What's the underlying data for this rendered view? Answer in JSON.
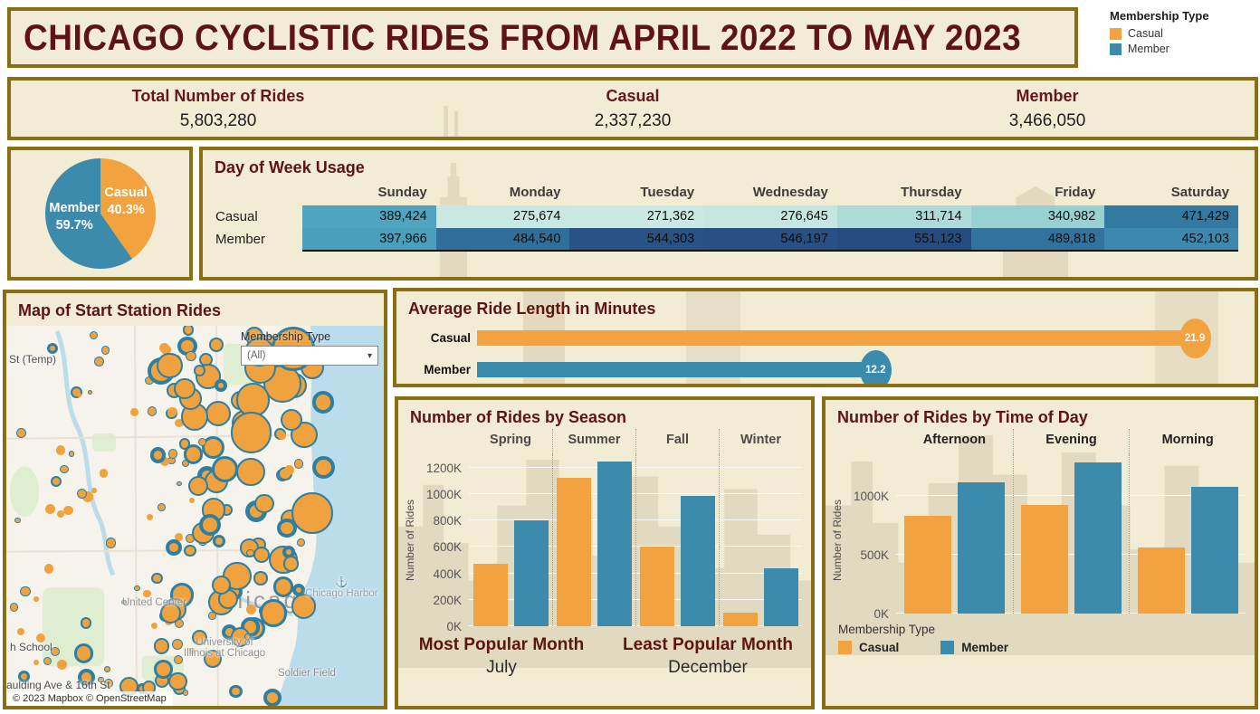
{
  "palette": {
    "casual": "#F2A340",
    "member": "#3C8BAD",
    "maroon": "#5E1414",
    "panel_border": "#8A6E14",
    "panel_bg": "#F3ECD5",
    "skyline": "#D8CFB5"
  },
  "title": "CHICAGO CYCLISTIC RIDES FROM APRIL 2022 TO MAY 2023",
  "legend": {
    "title": "Membership Type",
    "items": [
      {
        "label": "Casual",
        "color": "#F2A340"
      },
      {
        "label": "Member",
        "color": "#3C8BAD"
      }
    ]
  },
  "stats": {
    "items": [
      {
        "label": "Total Number of Rides",
        "value": "5,803,280"
      },
      {
        "label": "Casual",
        "value": "2,337,230"
      },
      {
        "label": "Member",
        "value": "3,466,050"
      }
    ]
  },
  "pie": {
    "slices": [
      {
        "label": "Casual",
        "pct": "40.3%",
        "value": 40.3,
        "color": "#F2A340"
      },
      {
        "label": "Member",
        "pct": "59.7%",
        "value": 59.7,
        "color": "#3C8BAD"
      }
    ]
  },
  "day_of_week": {
    "title": "Day of Week Usage",
    "columns": [
      "Sunday",
      "Monday",
      "Tuesday",
      "Wednesday",
      "Thursday",
      "Friday",
      "Saturday"
    ],
    "rows": [
      {
        "label": "Casual",
        "values": [
          "389,424",
          "275,674",
          "271,362",
          "276,645",
          "311,714",
          "340,982",
          "471,429"
        ],
        "colors": [
          "#4FA4C0",
          "#C9E8E3",
          "#CBE9E4",
          "#C6E6E1",
          "#ACDBD8",
          "#97D1D2",
          "#3379A2"
        ]
      },
      {
        "label": "Member",
        "values": [
          "397,966",
          "484,540",
          "544,303",
          "546,197",
          "551,123",
          "489,818",
          "452,103"
        ],
        "colors": [
          "#4A9FBD",
          "#2F6F9A",
          "#295285",
          "#285083",
          "#264C7F",
          "#31739D",
          "#3D89AE"
        ]
      }
    ]
  },
  "map": {
    "title": "Map of Start Station Rides",
    "filter": {
      "label": "Membership Type",
      "value": "(All)"
    },
    "labels": {
      "city": "Chicago",
      "st_temp": "St (Temp)",
      "united_center": "United Center",
      "chicago_harbor": "Chicago Harbor",
      "university_line1": "University of",
      "university_line2": "Illinois at Chicago",
      "school": "h School",
      "spaulding": "aulding Ave & 16th St",
      "soldier_field": "Soldier Field"
    },
    "attribution": "© 2023 Mapbox  © OpenStreetMap",
    "anchor_icon": "⚓",
    "dropdown_arrow": "▾"
  },
  "avg_ride": {
    "title": "Average Ride Length in Minutes",
    "max_scale": 22.9,
    "bars": [
      {
        "label": "Casual",
        "value": 21.9,
        "display": "21.9",
        "color": "#F2A340"
      },
      {
        "label": "Member",
        "value": 12.2,
        "display": "12.2",
        "color": "#3C8BAD"
      }
    ]
  },
  "season": {
    "title": "Number of Rides by Season",
    "ylabel": "Number of Rides",
    "annotations": [
      {
        "label": "Most Popular Month",
        "value": "July"
      },
      {
        "label": "Least Popular Month",
        "value": "December"
      }
    ]
  },
  "time_of_day": {
    "title": "Number of Rides by Time of Day",
    "ylabel": "Number of Rides",
    "legend_title": "Membership Type"
  },
  "chart_data": [
    {
      "type": "pie",
      "title": "Membership share of total rides",
      "labels": [
        "Casual",
        "Member"
      ],
      "values": [
        40.3,
        59.7
      ],
      "unit": "percent"
    },
    {
      "type": "heatmap",
      "title": "Day of Week Usage",
      "categories": [
        "Sunday",
        "Monday",
        "Tuesday",
        "Wednesday",
        "Thursday",
        "Friday",
        "Saturday"
      ],
      "series": [
        {
          "name": "Casual",
          "values": [
            389424,
            275674,
            271362,
            276645,
            311714,
            340982,
            471429
          ]
        },
        {
          "name": "Member",
          "values": [
            397966,
            484540,
            544303,
            546197,
            551123,
            489818,
            452103
          ]
        }
      ]
    },
    {
      "type": "bar",
      "title": "Average Ride Length in Minutes",
      "categories": [
        "Casual",
        "Member"
      ],
      "values": [
        21.9,
        12.2
      ],
      "unit": "minutes"
    },
    {
      "type": "bar",
      "title": "Number of Rides by Season",
      "categories": [
        "Spring",
        "Summer",
        "Fall",
        "Winter"
      ],
      "series": [
        {
          "name": "Casual",
          "values": [
            470000,
            1125000,
            605000,
            105000
          ]
        },
        {
          "name": "Member",
          "values": [
            800000,
            1245000,
            985000,
            435000
          ]
        }
      ],
      "ylabel": "Number of Rides",
      "yticks": [
        "0K",
        "200K",
        "400K",
        "600K",
        "800K",
        "1000K",
        "1200K"
      ],
      "ylim": [
        0,
        1300000
      ],
      "grid": true,
      "legend_position": "none"
    },
    {
      "type": "bar",
      "title": "Number of Rides by Time of Day",
      "categories": [
        "Afternoon",
        "Evening",
        "Morning"
      ],
      "series": [
        {
          "name": "Casual",
          "values": [
            830000,
            920000,
            560000
          ]
        },
        {
          "name": "Member",
          "values": [
            1110000,
            1280000,
            1075000
          ]
        }
      ],
      "ylabel": "Number of Rides",
      "yticks": [
        "0K",
        "500K",
        "1000K"
      ],
      "ylim": [
        0,
        1350000
      ],
      "grid": true,
      "legend_position": "bottom"
    }
  ]
}
